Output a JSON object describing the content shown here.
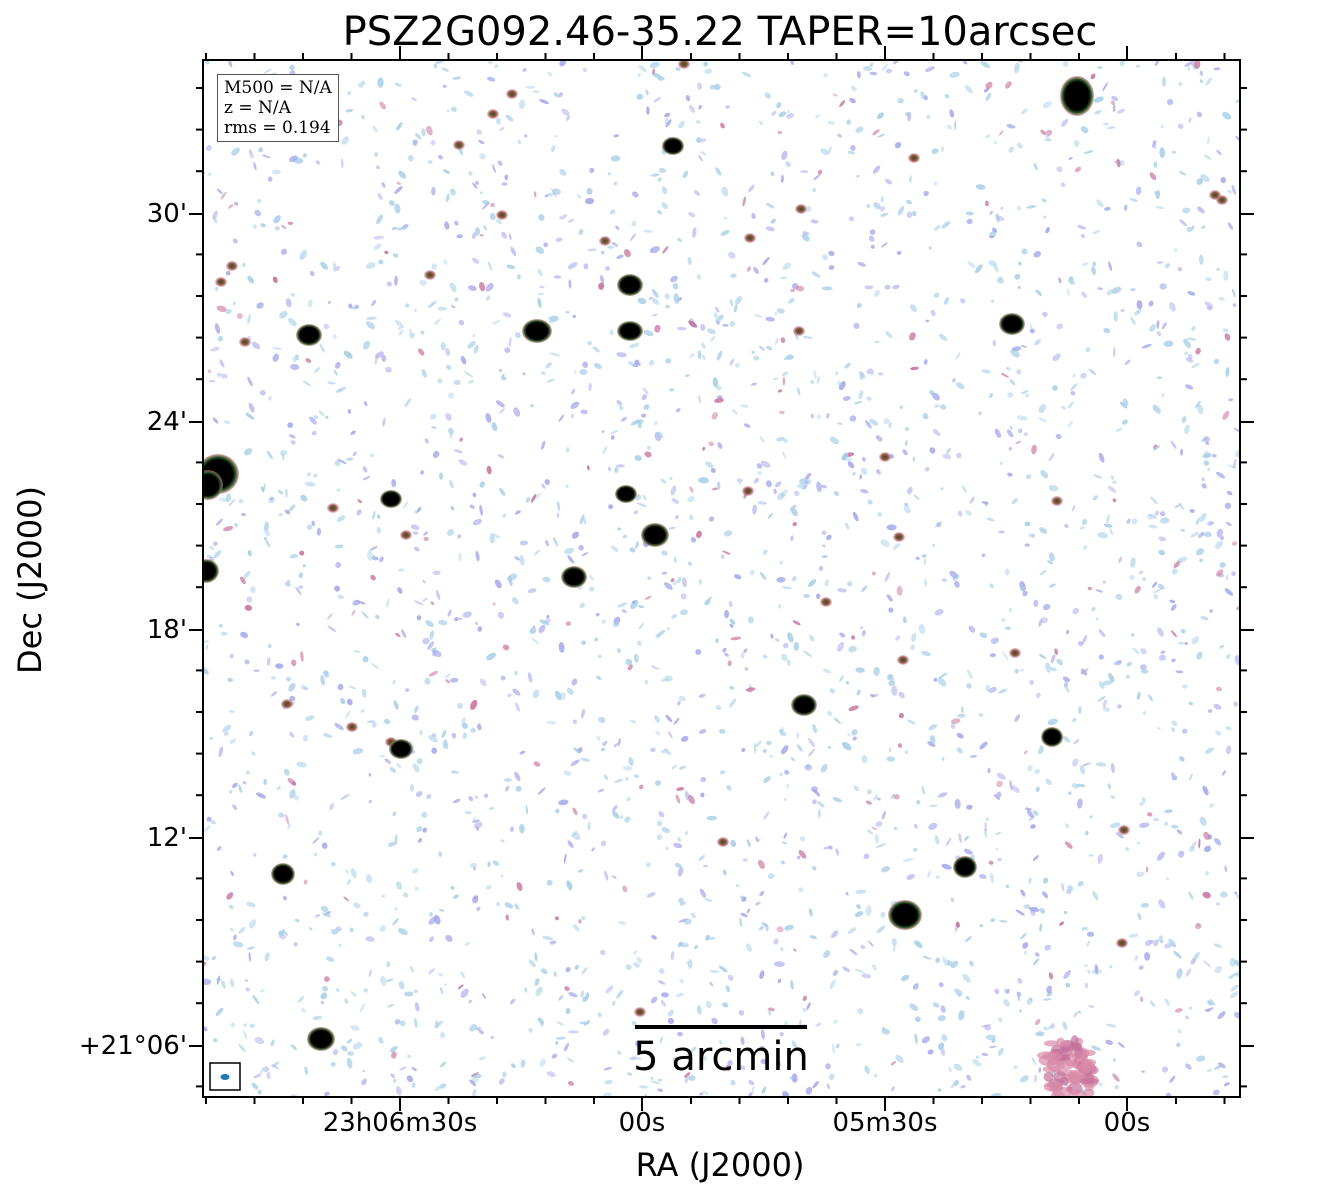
{
  "title": "PSZ2G092.46-35.22 TAPER=10arcsec",
  "axes": {
    "xlabel": "RA (J2000)",
    "ylabel": "Dec (J2000)",
    "yticks": [
      "30'",
      "24'",
      "18'",
      "12'",
      "+21°06'"
    ],
    "xticks": [
      "23h06m30s",
      "00s",
      "05m30s",
      "00s"
    ]
  },
  "info": {
    "m500": "M500 = N/A",
    "z": "z = N/A",
    "rms": "rms = 0.194"
  },
  "scalebar": {
    "label": "5 arcmin",
    "length_arcmin": 5
  },
  "colors": {
    "noise_low": "#a9cfe6",
    "noise_mid": "#a6a8ea",
    "noise_high": "#c5709a",
    "source_core": "#000000",
    "source_rim": "#2e7d32",
    "beam": "#1f77b4"
  },
  "icons": {
    "beam": "beam-ellipse-icon"
  }
}
